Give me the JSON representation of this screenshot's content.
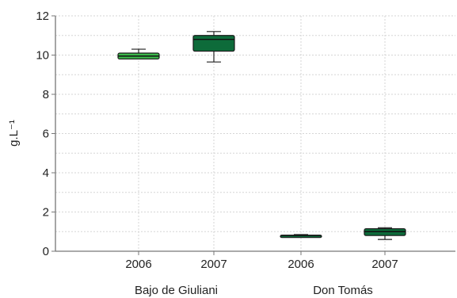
{
  "chart_data": {
    "type": "box",
    "ylabel": "g.L⁻¹",
    "ylim": [
      0,
      12
    ],
    "yticks": [
      "0",
      "2",
      "4",
      "6",
      "8",
      "10",
      "12"
    ],
    "groups": [
      "Bajo de Giuliani",
      "Don Tomás"
    ],
    "categories": [
      "2006",
      "2007",
      "2006",
      "2007"
    ],
    "boxes": [
      {
        "group": "Bajo de Giuliani",
        "year": "2006",
        "min": 9.8,
        "q1": 9.8,
        "median": 9.95,
        "q3": 10.1,
        "max": 10.3,
        "color": "#3cb84a"
      },
      {
        "group": "Bajo de Giuliani",
        "year": "2007",
        "min": 9.65,
        "q1": 10.2,
        "median": 10.8,
        "q3": 11.0,
        "max": 11.2,
        "color": "#0d6b3a"
      },
      {
        "group": "Don Tomás",
        "year": "2006",
        "min": 0.75,
        "q1": 0.75,
        "median": 0.8,
        "q3": 0.82,
        "max": 0.85,
        "color": "#0d6b3a"
      },
      {
        "group": "Don Tomás",
        "year": "2007",
        "min": 0.6,
        "q1": 0.8,
        "median": 1.0,
        "q3": 1.15,
        "max": 1.2,
        "color": "#0d6b3a"
      }
    ],
    "grid": true
  }
}
